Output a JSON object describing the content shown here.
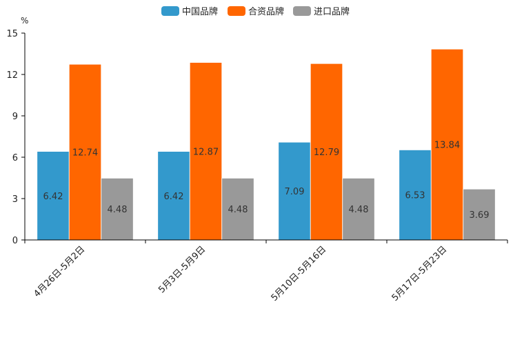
{
  "chart_data": {
    "type": "bar",
    "unit": "%",
    "categories": [
      "4月26日-5月2日",
      "5月3日-5月9日",
      "5月10日-5月16日",
      "5月17日-5月23日"
    ],
    "series": [
      {
        "name": "中国品牌",
        "color": "#3399cc",
        "values": [
          6.42,
          6.42,
          7.09,
          6.53
        ]
      },
      {
        "name": "合资品牌",
        "color": "#ff6600",
        "values": [
          12.74,
          12.87,
          12.79,
          13.84
        ]
      },
      {
        "name": "进口品牌",
        "color": "#999999",
        "values": [
          4.48,
          4.48,
          4.48,
          3.69
        ]
      }
    ],
    "yticks": [
      0,
      3,
      6,
      9,
      12,
      15
    ],
    "ylim": [
      0,
      15
    ],
    "legend_position": "top-center",
    "grid": false
  }
}
